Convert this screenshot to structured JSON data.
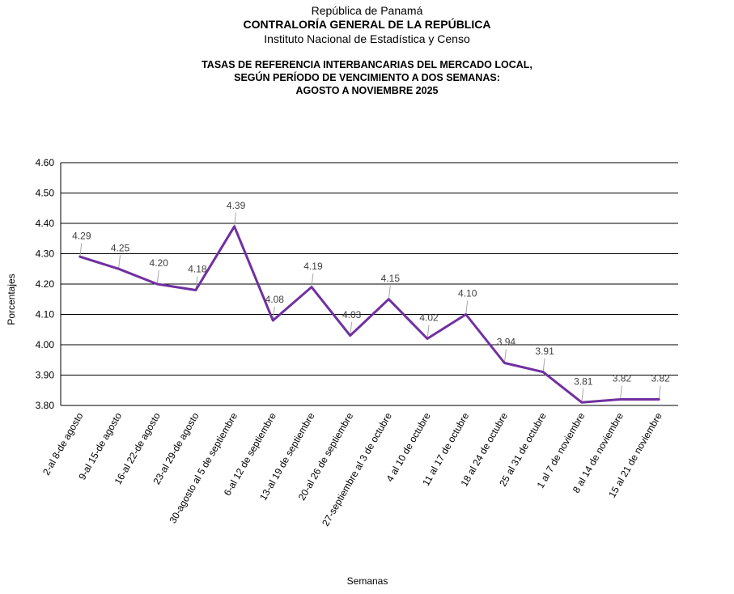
{
  "header": {
    "line1": "República de Panamá",
    "line2": "CONTRALORÍA GENERAL DE LA REPÚBLICA",
    "line3": "Instituto Nacional de Estadística y Censo"
  },
  "title": {
    "line1": "TASAS DE REFERENCIA INTERBANCARIAS DEL MERCADO LOCAL,",
    "line2": "SEGÚN PERÍODO DE VENCIMIENTO A DOS SEMANAS:",
    "line3": "AGOSTO A NOVIEMBRE 2025"
  },
  "chart_data": {
    "type": "line",
    "ylabel": "Porcentajes",
    "xlabel": "Semanas",
    "ylim": [
      3.8,
      4.6
    ],
    "yticks": [
      "4.60",
      "4.50",
      "4.40",
      "4.30",
      "4.20",
      "4.10",
      "4.00",
      "3.90",
      "3.80"
    ],
    "grid": true,
    "legend": "none",
    "line_color": "#7030a0",
    "categories": [
      "2-al 8-de agosto",
      "9-al 15-de agosto",
      "16-al 22-de agosto",
      "23-al 29-de agosto",
      "30-agosto al 5 de septiembre",
      "6-al 12 de septiembre",
      "13-al 19 de septiembre",
      "20-al 26 de septiembre",
      "27-septiembre al 3 de octubre",
      "4 al 10 de octubre",
      "11 al 17 de octubre",
      "18 al 24 de octubre",
      "25 al 31 de octubre",
      "1 al 7 de noviembre",
      "8 al 14 de noviembre",
      "15 al 21 de noviembre"
    ],
    "values": [
      4.29,
      4.25,
      4.2,
      4.18,
      4.39,
      4.08,
      4.19,
      4.03,
      4.15,
      4.02,
      4.1,
      3.94,
      3.91,
      3.81,
      3.82,
      3.82
    ],
    "data_labels": [
      "4.29",
      "4.25",
      "4.20",
      "4.18",
      "4.39",
      "4.08",
      "4.19",
      "4.03",
      "4.15",
      "4.02",
      "4.10",
      "3.94",
      "3.91",
      "3.81",
      "3.82",
      "3.82"
    ]
  }
}
